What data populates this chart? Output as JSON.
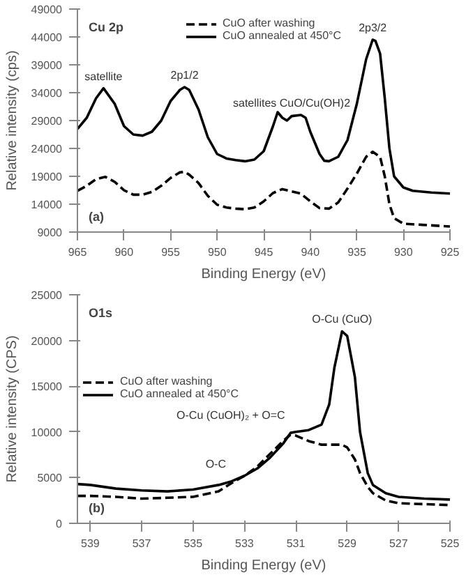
{
  "chart_data": [
    {
      "type": "line",
      "xlabel": "Binding Energy (eV)",
      "ylabel": "Relative intensity (cps)",
      "xlim": [
        965,
        925
      ],
      "ylim": [
        9000,
        49000
      ],
      "xticks": [
        965,
        960,
        955,
        950,
        945,
        940,
        935,
        930,
        925
      ],
      "yticks": [
        9000,
        14000,
        19000,
        24000,
        29000,
        34000,
        39000,
        44000,
        49000
      ],
      "grid": false,
      "legend": "top",
      "annotations": [
        "Cu 2p",
        "(a)",
        {
          "text": "satellite",
          "x": 962.2,
          "y": 34800
        },
        {
          "text": "2p1/2",
          "x": 953.5,
          "y": 35000
        },
        {
          "text": "satellites CuO/Cu(OH)2",
          "x": 942,
          "y": 30000
        },
        {
          "text": "2p3/2",
          "x": 933.3,
          "y": 43500
        }
      ],
      "series": [
        {
          "name": "CuO after washing",
          "color": "#000000",
          "line_style": "dashed",
          "x": [
            965,
            964,
            963,
            962,
            961,
            960,
            959,
            958,
            957,
            956,
            955,
            954,
            953.5,
            953,
            952,
            951,
            950,
            949,
            948,
            947,
            946,
            945,
            944,
            943,
            942,
            941,
            940,
            939,
            938,
            937,
            936,
            935,
            934,
            933.3,
            932.5,
            932,
            931.5,
            931,
            930,
            928,
            925
          ],
          "values": [
            16400,
            17300,
            18500,
            18900,
            18000,
            16500,
            15700,
            15700,
            16200,
            17300,
            18700,
            19700,
            19800,
            19300,
            17800,
            15500,
            13900,
            13400,
            13200,
            13100,
            13400,
            14500,
            16000,
            16700,
            16300,
            15900,
            14500,
            13300,
            13200,
            14300,
            16800,
            19500,
            22500,
            23400,
            22500,
            19000,
            14000,
            11500,
            10500,
            10300,
            10000
          ]
        },
        {
          "name": "CuO annealed at 450°C",
          "color": "#000000",
          "line_style": "solid",
          "x": [
            965,
            964,
            963,
            962.2,
            961,
            960,
            959,
            958,
            957,
            956,
            955,
            954,
            953.5,
            953,
            952,
            951,
            950,
            949,
            948,
            947,
            946,
            945,
            944,
            943.5,
            943,
            942.5,
            942,
            941,
            940.5,
            940,
            939,
            938.5,
            938,
            937,
            936,
            935,
            934,
            933.3,
            933,
            932.5,
            932,
            931.5,
            931,
            930,
            929,
            927,
            925
          ],
          "values": [
            27500,
            29500,
            33000,
            34800,
            32000,
            28000,
            26500,
            26300,
            27000,
            29000,
            32500,
            34500,
            35000,
            34500,
            31000,
            26000,
            23000,
            22200,
            21900,
            21700,
            22000,
            23500,
            28000,
            30500,
            29500,
            29000,
            29800,
            30000,
            29500,
            27000,
            23000,
            21800,
            21700,
            22500,
            25500,
            32000,
            40000,
            43500,
            43300,
            41000,
            33000,
            24000,
            19000,
            17000,
            16400,
            16100,
            15900
          ]
        }
      ]
    },
    {
      "type": "line",
      "xlabel": "Binding Energy (eV)",
      "ylabel": "Relative intensity (CPS)",
      "xlim": [
        539.5,
        525
      ],
      "ylim": [
        0,
        25000
      ],
      "xticks": [
        539,
        537,
        535,
        533,
        531,
        529,
        527,
        525
      ],
      "yticks": [
        0,
        5000,
        10000,
        15000,
        20000,
        25000
      ],
      "grid": false,
      "legend": "left",
      "annotations": [
        "O1s",
        "(b)",
        {
          "text": "O-Cu (CuO)",
          "x": 529.2,
          "y": 21000
        },
        {
          "text": "O-Cu (CuOH)₂ + O=C",
          "x": 531.2,
          "y": 9900
        },
        {
          "text": "O-C",
          "x": 533.5,
          "y": 4600
        }
      ],
      "series": [
        {
          "name": "CuO after washing",
          "color": "#000000",
          "line_style": "dashed",
          "x": [
            539.5,
            539,
            538,
            537,
            536,
            535,
            534,
            533.5,
            533,
            532.5,
            532,
            531.5,
            531.2,
            531,
            530.5,
            530,
            529.5,
            529.2,
            529,
            528.7,
            528.5,
            528.2,
            528,
            527.5,
            527,
            526,
            525
          ],
          "values": [
            3000,
            3000,
            2900,
            2700,
            2800,
            2900,
            3500,
            4400,
            5200,
            6200,
            7600,
            9000,
            9700,
            9600,
            9000,
            8600,
            8600,
            8600,
            8300,
            7000,
            5500,
            4000,
            3300,
            2500,
            2200,
            2100,
            2000
          ]
        },
        {
          "name": "CuO annealed at 450°C",
          "color": "#000000",
          "line_style": "solid",
          "x": [
            539.5,
            539,
            538,
            537,
            536,
            535,
            534,
            533.5,
            533,
            532.5,
            532,
            531.5,
            531.2,
            531,
            530.5,
            530,
            529.7,
            529.5,
            529.2,
            529,
            528.7,
            528.5,
            528.2,
            528,
            527.5,
            527,
            526,
            525
          ],
          "values": [
            4300,
            4200,
            3800,
            3600,
            3500,
            3700,
            4200,
            4600,
            5200,
            6000,
            7200,
            8700,
            9900,
            10000,
            10200,
            10800,
            13000,
            17000,
            21000,
            20500,
            16000,
            10000,
            5500,
            4200,
            3300,
            2900,
            2700,
            2600
          ]
        }
      ]
    }
  ]
}
